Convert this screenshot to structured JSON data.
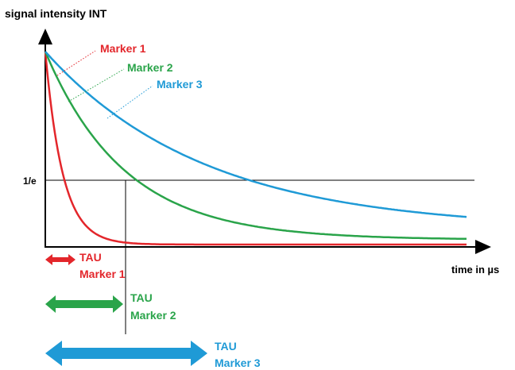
{
  "chart_data": {
    "type": "line",
    "ylabel": "signal intensity INT",
    "xlabel": "time in µs",
    "y_tick_label": "1/e",
    "series": [
      {
        "name": "Marker 1",
        "color": "#e3262b",
        "tau_label": "TAU",
        "tau_marker": "Marker 1"
      },
      {
        "name": "Marker 2",
        "color": "#2aa44a",
        "tau_label": "TAU",
        "tau_marker": "Marker 2"
      },
      {
        "name": "Marker 3",
        "color": "#1f9ad6",
        "tau_label": "TAU",
        "tau_marker": "Marker 3"
      }
    ]
  }
}
